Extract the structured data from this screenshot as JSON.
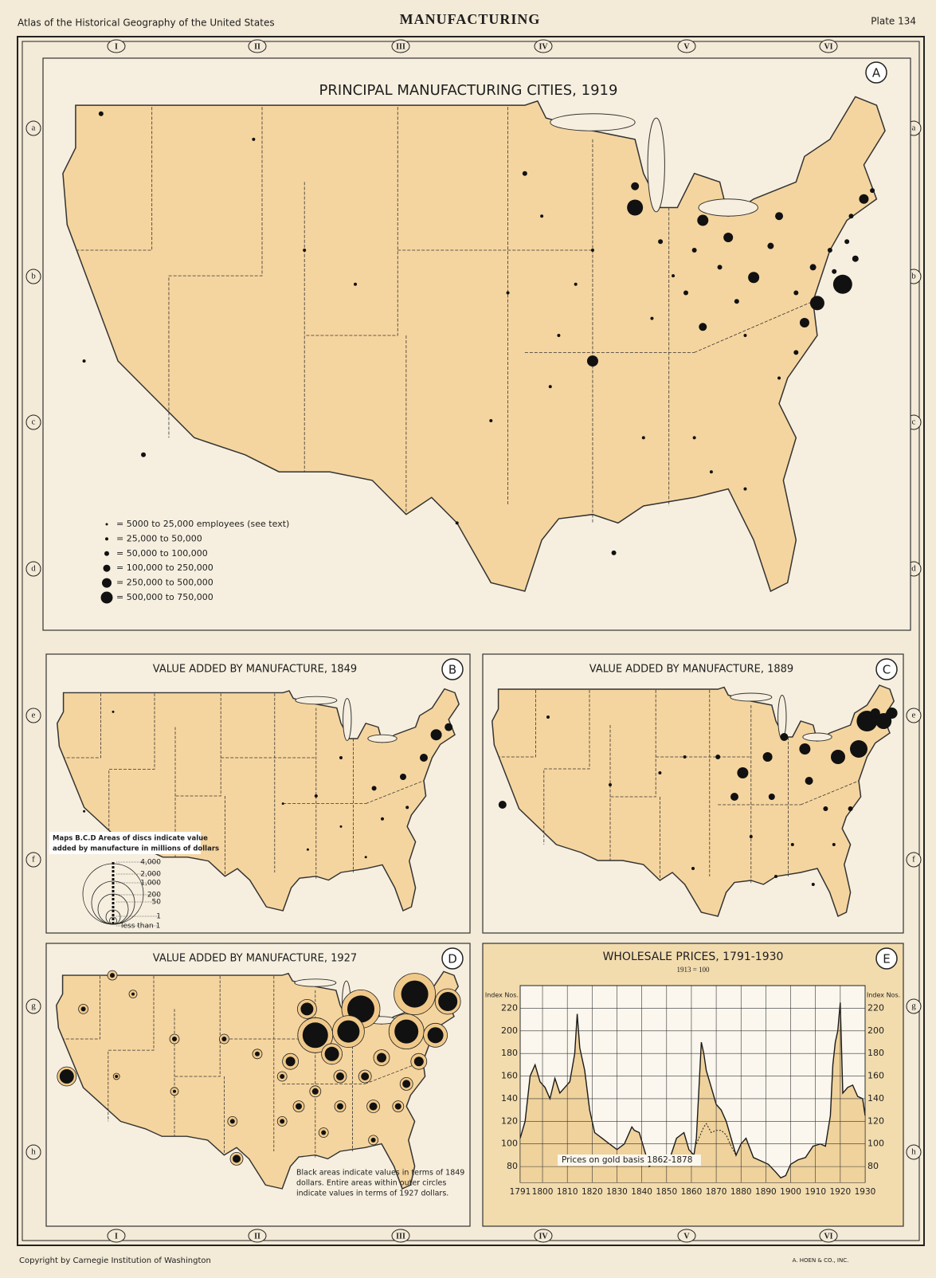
{
  "header": {
    "left": "Atlas of the Historical Geography of the United States",
    "title": "MANUFACTURING",
    "plate": "Plate 134"
  },
  "footer": {
    "copyright": "Copyright by Carnegie Institution of Washington",
    "printer": "A. HOEN & CO., INC."
  },
  "grid_columns": [
    "I",
    "II",
    "III",
    "IV",
    "V",
    "VI"
  ],
  "grid_rows": [
    "a",
    "b",
    "c",
    "d",
    "e",
    "f",
    "g",
    "h"
  ],
  "maps": [
    {
      "letter": "A",
      "title": "PRINCIPAL MANUFACTURING CITIES, 1919",
      "legend": [
        "= 5000 to 25,000 employees (see text)",
        "= 25,000 to 50,000",
        "= 50,000 to 100,000",
        "= 100,000 to 250,000",
        "= 250,000 to 500,000",
        "= 500,000 to 750,000"
      ]
    },
    {
      "letter": "B",
      "title": "VALUE ADDED BY MANUFACTURE, 1849",
      "legend_title": [
        "Maps B.C.D  Areas of discs indicate value",
        "added by manufacture  in  millions  of  dollars"
      ],
      "legend": [
        "4,000",
        "2,000",
        "1,000",
        "200",
        "50",
        "1",
        "less  than 1"
      ]
    },
    {
      "letter": "C",
      "title": "VALUE ADDED BY MANUFACTURE, 1889"
    },
    {
      "letter": "D",
      "title": "VALUE ADDED BY MANUFACTURE, 1927",
      "note": [
        "Black areas indicate values in terms of 1849",
        "dollars.  Entire areas within outer circles",
        "indicate values in terms of 1927 dollars."
      ]
    }
  ],
  "chart_data": {
    "type": "line",
    "letter": "E",
    "title": "WHOLESALE PRICES, 1791-1930",
    "subtitle": "1913 = 100",
    "y_label": "Index Nos.",
    "x": [
      1791,
      1793,
      1795,
      1797,
      1799,
      1801,
      1803,
      1805,
      1807,
      1809,
      1811,
      1813,
      1814,
      1815,
      1817,
      1819,
      1821,
      1824,
      1827,
      1830,
      1833,
      1836,
      1837,
      1839,
      1841,
      1843,
      1845,
      1848,
      1851,
      1854,
      1857,
      1859,
      1861,
      1862,
      1864,
      1865,
      1866,
      1868,
      1870,
      1872,
      1874,
      1876,
      1878,
      1880,
      1882,
      1885,
      1888,
      1891,
      1894,
      1896,
      1898,
      1900,
      1903,
      1906,
      1909,
      1912,
      1914,
      1916,
      1917,
      1918,
      1919,
      1920,
      1921,
      1923,
      1925,
      1927,
      1929,
      1930
    ],
    "series": [
      {
        "color": "#1a1a1a",
        "values": [
          105,
          120,
          160,
          170,
          155,
          150,
          140,
          158,
          145,
          150,
          155,
          180,
          215,
          185,
          165,
          130,
          110,
          105,
          100,
          95,
          100,
          115,
          112,
          110,
          95,
          80,
          85,
          88,
          85,
          105,
          110,
          95,
          90,
          105,
          190,
          180,
          165,
          150,
          135,
          130,
          120,
          105,
          90,
          100,
          105,
          88,
          85,
          82,
          75,
          70,
          72,
          82,
          86,
          88,
          98,
          100,
          98,
          125,
          170,
          190,
          200,
          225,
          145,
          150,
          152,
          142,
          140,
          125
        ]
      },
      {
        "name": "Prices on gold basis 1862-1878",
        "color": "#1a1a1a",
        "x": [
          1862,
          1864,
          1865,
          1866,
          1868,
          1870,
          1872,
          1874,
          1876,
          1878
        ],
        "values": [
          100,
          110,
          115,
          118,
          110,
          112,
          112,
          108,
          98,
          90
        ]
      }
    ],
    "xlim": [
      1791,
      1930
    ],
    "xticks": [
      1791,
      1800,
      1810,
      1820,
      1830,
      1840,
      1850,
      1860,
      1870,
      1880,
      1890,
      1900,
      1910,
      1920,
      1930
    ],
    "ylim": [
      66,
      240
    ],
    "yticks": [
      80,
      100,
      120,
      140,
      160,
      180,
      200,
      220
    ],
    "grid": true,
    "fill": "#efd29c"
  }
}
